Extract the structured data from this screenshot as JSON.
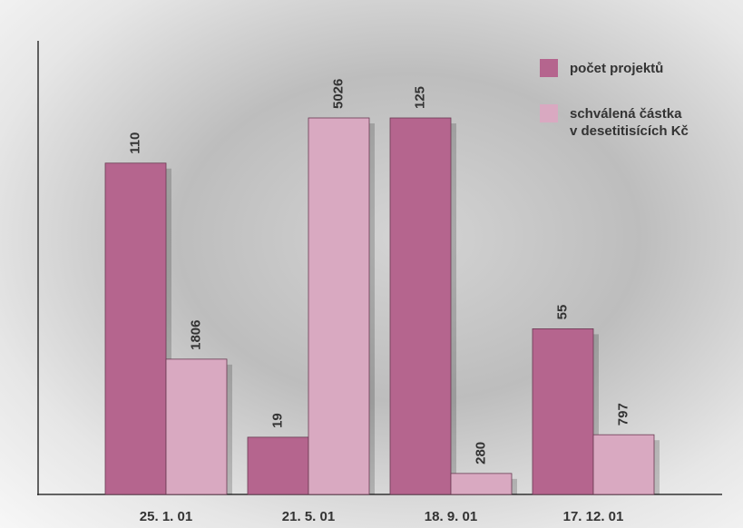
{
  "chart_data": {
    "type": "bar",
    "categories": [
      "25. 1. 01",
      "21. 5. 01",
      "18. 9. 01",
      "17. 12. 01"
    ],
    "series": [
      {
        "name": "počet projektů",
        "color": "#b5658e",
        "values": [
          110,
          19,
          125,
          55
        ]
      },
      {
        "name": "schválená částka\nv desetitisících Kč",
        "color": "#d9a9c1",
        "values": [
          1806,
          5026,
          280,
          797
        ]
      }
    ],
    "legend": "top-right"
  }
}
